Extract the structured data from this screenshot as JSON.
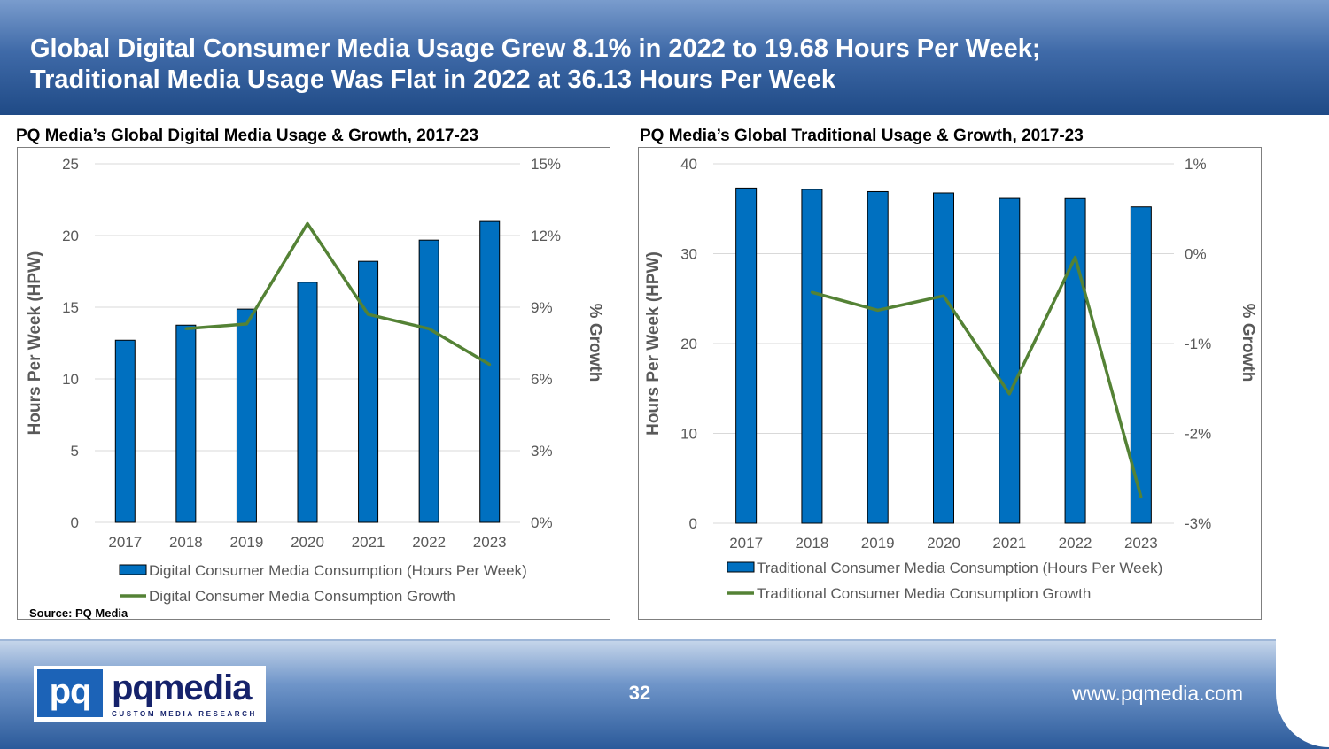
{
  "header": {
    "title_line1": "Global Digital Consumer Media Usage Grew 8.1% in 2022 to 19.68 Hours Per Week;",
    "title_line2": "Traditional Media Usage Was Flat in 2022 at 36.13 Hours Per Week"
  },
  "source": "Source: PQ Media",
  "footer": {
    "logo_mark": "pq",
    "logo_name": "pqmedia",
    "logo_tagline": "CUSTOM MEDIA RESEARCH",
    "page_number": "32",
    "website": "www.pqmedia.com"
  },
  "colors": {
    "bar": "#0070c0",
    "line": "#548235",
    "header": "#2f5c9a"
  },
  "chart_data": [
    {
      "type": "bar",
      "title": "PQ Media’s Global Digital Media Usage & Growth, 2017-23",
      "categories": [
        "2017",
        "2018",
        "2019",
        "2020",
        "2021",
        "2022",
        "2023"
      ],
      "ylabel": "Hours Per Week (HPW)",
      "y2label": "% Growth",
      "ylim": [
        0,
        25
      ],
      "yticks": [
        "0",
        "5",
        "10",
        "15",
        "20",
        "25"
      ],
      "y2lim": [
        0,
        15
      ],
      "y2ticks": [
        "0%",
        "3%",
        "6%",
        "9%",
        "12%",
        "15%"
      ],
      "grid": true,
      "legend": "bottom",
      "series": [
        {
          "name": "Digital Consumer Media Consumption (Hours Per Week)",
          "type": "bar",
          "axis": "left",
          "values": [
            12.7,
            13.75,
            14.87,
            16.74,
            18.2,
            19.68,
            20.98
          ]
        },
        {
          "name": "Digital Consumer Media Consumption Growth",
          "type": "line",
          "axis": "right",
          "values": [
            null,
            8.1,
            8.3,
            12.5,
            8.7,
            8.1,
            6.6
          ]
        }
      ]
    },
    {
      "type": "bar",
      "title": "PQ Media’s Global Traditional Usage & Growth, 2017-23",
      "categories": [
        "2017",
        "2018",
        "2019",
        "2020",
        "2021",
        "2022",
        "2023"
      ],
      "ylabel": "Hours Per Week (HPW)",
      "y2label": "% Growth",
      "ylim": [
        0,
        40
      ],
      "yticks": [
        "0",
        "10",
        "20",
        "30",
        "40"
      ],
      "y2lim": [
        -3,
        1
      ],
      "y2ticks": [
        "-3%",
        "-2%",
        "-1%",
        "0%",
        "1%"
      ],
      "grid": true,
      "legend": "bottom",
      "series": [
        {
          "name": "Traditional Consumer Media Consumption (Hours Per Week)",
          "type": "bar",
          "axis": "left",
          "values": [
            37.3,
            37.15,
            36.9,
            36.75,
            36.15,
            36.13,
            35.2
          ]
        },
        {
          "name": "Traditional Consumer Media Consumption Growth",
          "type": "line",
          "axis": "right",
          "values": [
            null,
            -0.43,
            -0.63,
            -0.47,
            -1.56,
            -0.04,
            -2.71
          ]
        }
      ]
    }
  ]
}
